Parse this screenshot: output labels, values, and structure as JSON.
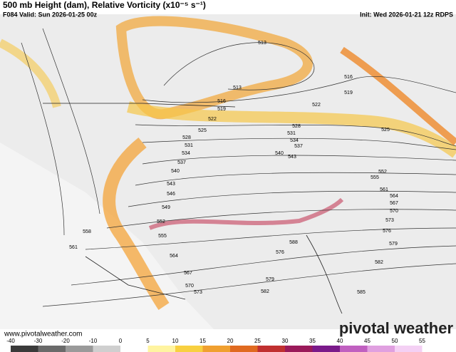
{
  "header": {
    "title": "500 mb Height (dam), Relative Vorticity (x10⁻⁵ s⁻¹)",
    "valid": "F084 Valid: Sun 2026-01-25 00z",
    "init": "Init: Wed 2026-01-21 12z RDPS"
  },
  "map": {
    "contour_labels": [
      "513",
      "513",
      "516",
      "516",
      "519",
      "519",
      "522",
      "522",
      "525",
      "525",
      "528",
      "528",
      "531",
      "531",
      "534",
      "534",
      "537",
      "537",
      "540",
      "540",
      "543",
      "543",
      "546",
      "549",
      "552",
      "552",
      "555",
      "555",
      "558",
      "561",
      "561",
      "564",
      "564",
      "567",
      "567",
      "570",
      "570",
      "573",
      "573",
      "576",
      "576",
      "579",
      "579",
      "582",
      "582",
      "585",
      "588"
    ]
  },
  "colorbar": {
    "ticks": [
      -40,
      -30,
      -20,
      -10,
      0,
      5,
      10,
      15,
      20,
      25,
      30,
      35,
      40,
      45,
      50,
      55
    ]
  },
  "footer": {
    "website": "www.pivotalweather.com",
    "logo": "pivotal weather"
  }
}
